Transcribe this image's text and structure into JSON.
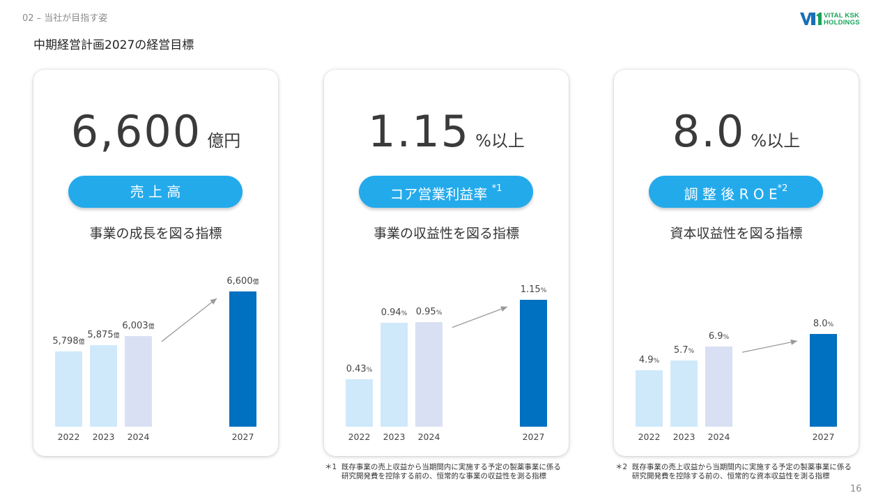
{
  "header": {
    "section": "02 – 当社が目指す姿",
    "title": "中期経営計画2027の経営目標",
    "logo_line1": "VITAL KSK",
    "logo_line2": "HOLDINGS"
  },
  "colors": {
    "bar_light": "#cfe9fb",
    "bar_2024": "#d9e0f3",
    "bar_target": "#0070c0",
    "pill": "#23aaeb",
    "arrow": "#999999"
  },
  "cards": [
    {
      "big_value": "6,600",
      "big_unit": "億円",
      "pill_label": "売 上 高",
      "pill_sup": "",
      "subtitle": "事業の成長を図る指標"
    },
    {
      "big_value": "1.15",
      "big_unit": "%以上",
      "pill_label": "コア営業利益率",
      "pill_sup": "*1",
      "subtitle": "事業の収益性を図る指標"
    },
    {
      "big_value": "8.0",
      "big_unit": "%以上",
      "pill_label": "調 整 後 R O E",
      "pill_sup": "*2",
      "subtitle": "資本収益性を図る指標"
    }
  ],
  "chart_data": [
    {
      "type": "bar",
      "categories": [
        "2022",
        "2023",
        "2024",
        "2027"
      ],
      "values": [
        5798,
        5875,
        6003,
        6600
      ],
      "value_labels": [
        "5,798",
        "5,875",
        "6,003",
        "6,600"
      ],
      "unit": "億",
      "title": "",
      "xlabel": "",
      "ylabel": ""
    },
    {
      "type": "bar",
      "categories": [
        "2022",
        "2023",
        "2024",
        "2027"
      ],
      "values": [
        0.43,
        0.94,
        0.95,
        1.15
      ],
      "value_labels": [
        "0.43",
        "0.94",
        "0.95",
        "1.15"
      ],
      "unit": "%",
      "title": "",
      "xlabel": "",
      "ylabel": ""
    },
    {
      "type": "bar",
      "categories": [
        "2022",
        "2023",
        "2024",
        "2027"
      ],
      "values": [
        4.9,
        5.7,
        6.9,
        8.0
      ],
      "value_labels": [
        "4.9",
        "5.7",
        "6.9",
        "8.0"
      ],
      "unit": "%",
      "title": "",
      "xlabel": "",
      "ylabel": ""
    }
  ],
  "footnotes": [
    {
      "mark": "＊1",
      "line1": "既存事業の売上収益から当期間内に実施する予定の製薬事業に係る",
      "line2": "研究開発費を控除する前の、恒常的な事業の収益性を測る指標"
    },
    {
      "mark": "＊2",
      "line1": "既存事業の売上収益から当期間内に実施する予定の製薬事業に係る",
      "line2": "研究開発費を控除する前の、恒常的な資本収益性を測る指標"
    }
  ],
  "page_number": "16"
}
